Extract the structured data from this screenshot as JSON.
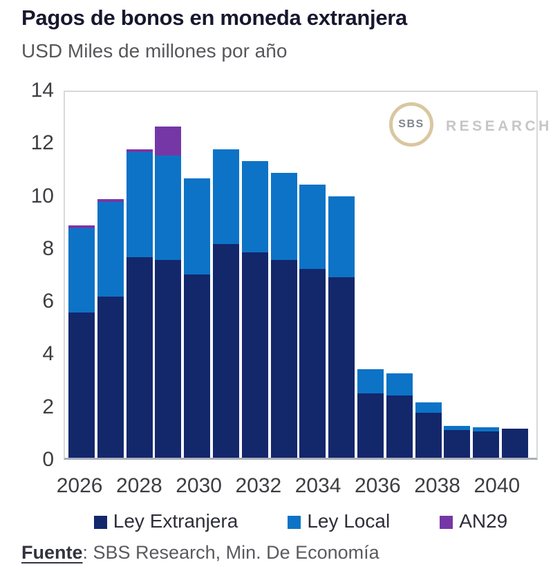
{
  "header": {
    "title": "Pagos de bonos en moneda extranjera",
    "subtitle": "USD Miles de millones por año"
  },
  "logo": {
    "circle_text": "SBS",
    "label": "RESEARCH"
  },
  "chart_data": {
    "type": "bar",
    "stacked": true,
    "title": "Pagos de bonos en moneda extranjera",
    "subtitle": "USD Miles de millones por año",
    "ylabel": "USD Miles de millones por año",
    "xlabel": "",
    "ylim": [
      0,
      14
    ],
    "yticks": [
      0,
      2,
      4,
      6,
      8,
      10,
      12,
      14
    ],
    "grid": false,
    "legend_position": "bottom",
    "categories": [
      "2026",
      "2027",
      "2028",
      "2029",
      "2030",
      "2031",
      "2032",
      "2033",
      "2034",
      "2035",
      "2036",
      "2037",
      "2038",
      "2039",
      "2040",
      "2041"
    ],
    "xtick_labels": [
      "2026",
      "2028",
      "2030",
      "2032",
      "2034",
      "2036",
      "2038",
      "2040"
    ],
    "series": [
      {
        "name": "Ley Extranjera",
        "color": "#13276b",
        "values": [
          5.5,
          6.1,
          7.6,
          7.5,
          6.95,
          8.1,
          7.8,
          7.5,
          7.15,
          6.85,
          2.45,
          2.35,
          1.7,
          1.05,
          1.0,
          1.1
        ]
      },
      {
        "name": "Ley Local",
        "color": "#0d73c6",
        "values": [
          3.2,
          3.6,
          4.0,
          3.95,
          3.65,
          3.6,
          3.45,
          3.3,
          3.2,
          3.05,
          0.9,
          0.85,
          0.4,
          0.15,
          0.15,
          0
        ]
      },
      {
        "name": "AN29",
        "color": "#7637a6",
        "values": [
          0.1,
          0.1,
          0.1,
          1.1,
          0,
          0,
          0,
          0,
          0,
          0,
          0,
          0,
          0,
          0,
          0,
          0
        ]
      }
    ],
    "totals": [
      8.8,
      9.8,
      11.7,
      12.55,
      10.6,
      11.7,
      11.25,
      10.8,
      10.35,
      9.9,
      3.35,
      3.2,
      2.1,
      1.2,
      1.15,
      1.1
    ]
  },
  "footer": {
    "source_label": "Fuente",
    "source_text": ": SBS Research, Min. De Economía"
  }
}
